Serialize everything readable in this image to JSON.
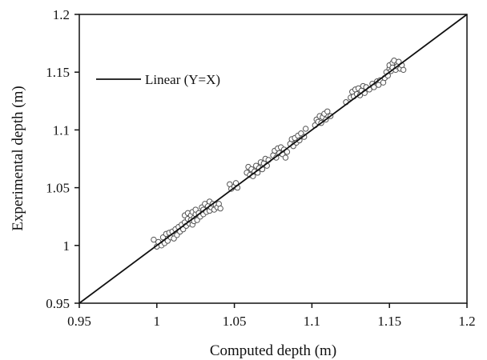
{
  "chart_data": {
    "type": "scatter",
    "xlabel": "Computed depth (m)",
    "ylabel": "Experimental depth (m)",
    "xlim": [
      0.95,
      1.2
    ],
    "ylim": [
      0.95,
      1.2
    ],
    "x_ticks": [
      "0.95",
      "1",
      "1.05",
      "1.1",
      "1.15",
      "1.2"
    ],
    "y_ticks": [
      "0.95",
      "1",
      "1.05",
      "1.1",
      "1.15",
      "1.2"
    ],
    "grid": false,
    "legend": {
      "position": "upper-left",
      "entries": [
        "Linear (Y=X)"
      ]
    },
    "series": [
      {
        "type": "scatter",
        "marker": "open-circle",
        "points": [
          [
            0.998,
            1.005
          ],
          [
            1.0,
            0.999
          ],
          [
            1.001,
            1.003
          ],
          [
            1.003,
            1.0
          ],
          [
            1.004,
            1.007
          ],
          [
            1.005,
            1.002
          ],
          [
            1.006,
            1.01
          ],
          [
            1.007,
            1.004
          ],
          [
            1.008,
            1.011
          ],
          [
            1.009,
            1.007
          ],
          [
            1.01,
            1.012
          ],
          [
            1.011,
            1.006
          ],
          [
            1.012,
            1.014
          ],
          [
            1.013,
            1.009
          ],
          [
            1.014,
            1.016
          ],
          [
            1.015,
            1.012
          ],
          [
            1.016,
            1.018
          ],
          [
            1.017,
            1.014
          ],
          [
            1.018,
            1.02
          ],
          [
            1.018,
            1.026
          ],
          [
            1.019,
            1.017
          ],
          [
            1.02,
            1.023
          ],
          [
            1.02,
            1.028
          ],
          [
            1.021,
            1.019
          ],
          [
            1.022,
            1.026
          ],
          [
            1.022,
            1.022
          ],
          [
            1.023,
            1.029
          ],
          [
            1.023,
            1.018
          ],
          [
            1.024,
            1.024
          ],
          [
            1.024,
            1.021
          ],
          [
            1.025,
            1.027
          ],
          [
            1.025,
            1.031
          ],
          [
            1.026,
            1.022
          ],
          [
            1.027,
            1.028
          ],
          [
            1.028,
            1.025
          ],
          [
            1.029,
            1.033
          ],
          [
            1.03,
            1.027
          ],
          [
            1.03,
            1.031
          ],
          [
            1.031,
            1.036
          ],
          [
            1.032,
            1.029
          ],
          [
            1.033,
            1.034
          ],
          [
            1.034,
            1.03
          ],
          [
            1.034,
            1.038
          ],
          [
            1.035,
            1.033
          ],
          [
            1.036,
            1.036
          ],
          [
            1.037,
            1.031
          ],
          [
            1.038,
            1.035
          ],
          [
            1.039,
            1.033
          ],
          [
            1.04,
            1.036
          ],
          [
            1.041,
            1.032
          ],
          [
            1.047,
            1.053
          ],
          [
            1.048,
            1.049
          ],
          [
            1.05,
            1.051
          ],
          [
            1.051,
            1.054
          ],
          [
            1.052,
            1.05
          ],
          [
            1.058,
            1.063
          ],
          [
            1.059,
            1.068
          ],
          [
            1.06,
            1.061
          ],
          [
            1.061,
            1.066
          ],
          [
            1.062,
            1.06
          ],
          [
            1.063,
            1.064
          ],
          [
            1.064,
            1.069
          ],
          [
            1.065,
            1.063
          ],
          [
            1.066,
            1.067
          ],
          [
            1.067,
            1.072
          ],
          [
            1.068,
            1.066
          ],
          [
            1.069,
            1.071
          ],
          [
            1.07,
            1.075
          ],
          [
            1.071,
            1.069
          ],
          [
            1.072,
            1.074
          ],
          [
            1.075,
            1.078
          ],
          [
            1.076,
            1.082
          ],
          [
            1.077,
            1.076
          ],
          [
            1.078,
            1.084
          ],
          [
            1.079,
            1.08
          ],
          [
            1.08,
            1.085
          ],
          [
            1.081,
            1.079
          ],
          [
            1.082,
            1.083
          ],
          [
            1.083,
            1.076
          ],
          [
            1.084,
            1.081
          ],
          [
            1.086,
            1.088
          ],
          [
            1.087,
            1.092
          ],
          [
            1.088,
            1.086
          ],
          [
            1.089,
            1.093
          ],
          [
            1.09,
            1.089
          ],
          [
            1.091,
            1.095
          ],
          [
            1.092,
            1.091
          ],
          [
            1.093,
            1.097
          ],
          [
            1.095,
            1.094
          ],
          [
            1.096,
            1.101
          ],
          [
            1.102,
            1.104
          ],
          [
            1.103,
            1.109
          ],
          [
            1.104,
            1.107
          ],
          [
            1.105,
            1.112
          ],
          [
            1.106,
            1.106
          ],
          [
            1.107,
            1.111
          ],
          [
            1.108,
            1.114
          ],
          [
            1.109,
            1.109
          ],
          [
            1.11,
            1.116
          ],
          [
            1.112,
            1.112
          ],
          [
            1.122,
            1.124
          ],
          [
            1.125,
            1.128
          ],
          [
            1.126,
            1.133
          ],
          [
            1.127,
            1.129
          ],
          [
            1.128,
            1.135
          ],
          [
            1.129,
            1.131
          ],
          [
            1.13,
            1.136
          ],
          [
            1.131,
            1.13
          ],
          [
            1.132,
            1.134
          ],
          [
            1.133,
            1.138
          ],
          [
            1.134,
            1.132
          ],
          [
            1.135,
            1.137
          ],
          [
            1.137,
            1.135
          ],
          [
            1.139,
            1.14
          ],
          [
            1.14,
            1.137
          ],
          [
            1.142,
            1.142
          ],
          [
            1.143,
            1.139
          ],
          [
            1.144,
            1.143
          ],
          [
            1.146,
            1.141
          ],
          [
            1.147,
            1.145
          ],
          [
            1.148,
            1.15
          ],
          [
            1.149,
            1.147
          ],
          [
            1.15,
            1.153
          ],
          [
            1.15,
            1.156
          ],
          [
            1.151,
            1.151
          ],
          [
            1.152,
            1.158
          ],
          [
            1.152,
            1.154
          ],
          [
            1.153,
            1.16
          ],
          [
            1.154,
            1.152
          ],
          [
            1.155,
            1.157
          ],
          [
            1.155,
            1.155
          ],
          [
            1.156,
            1.159
          ],
          [
            1.157,
            1.153
          ],
          [
            1.158,
            1.156
          ],
          [
            1.159,
            1.152
          ]
        ]
      },
      {
        "name": "Linear (Y=X)",
        "type": "line",
        "points": [
          [
            0.95,
            0.95
          ],
          [
            1.2,
            1.2
          ]
        ]
      }
    ]
  }
}
